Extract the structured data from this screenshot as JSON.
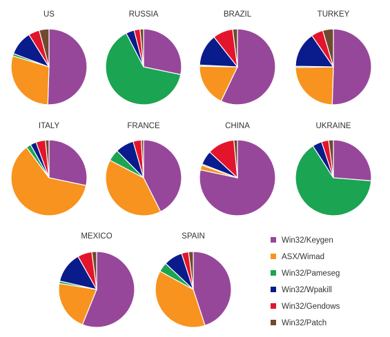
{
  "chart_data": {
    "type": "pie",
    "series_names": [
      "Win32/Keygen",
      "ASX/Wimad",
      "Win32/Pameseg",
      "Win32/Wpakill",
      "Win32/Gendows",
      "Win32/Patch"
    ],
    "colors": [
      "#97479A",
      "#F7931E",
      "#1BA452",
      "#0A1B8C",
      "#E3152C",
      "#6E4B2E"
    ],
    "pies": [
      {
        "title": "US",
        "values": [
          48.5,
          28.0,
          1.0,
          10.0,
          4.5,
          4.0
        ]
      },
      {
        "title": "RUSSIA",
        "values": [
          28.0,
          0.0,
          63.5,
          3.5,
          2.5,
          1.5
        ]
      },
      {
        "title": "BRAZIL",
        "values": [
          56.5,
          18.0,
          0.5,
          13.5,
          8.5,
          2.0
        ]
      },
      {
        "title": "TURKEY",
        "values": [
          50.0,
          24.0,
          0.5,
          15.0,
          5.0,
          4.5
        ]
      },
      {
        "title": "ITALY",
        "values": [
          28.0,
          61.0,
          2.0,
          2.5,
          4.0,
          1.5
        ]
      },
      {
        "title": "FRANCE",
        "values": [
          43.0,
          40.5,
          5.0,
          8.0,
          3.5,
          1.0
        ]
      },
      {
        "title": "CHINA",
        "values": [
          78.0,
          2.0,
          0.5,
          6.0,
          11.5,
          1.5
        ]
      },
      {
        "title": "UKRAINE",
        "values": [
          26.0,
          0.0,
          64.0,
          4.0,
          3.0,
          2.0
        ]
      },
      {
        "title": "MEXICO",
        "values": [
          55.0,
          21.0,
          1.0,
          13.0,
          6.0,
          2.0
        ]
      },
      {
        "title": "SPAIN",
        "values": [
          45.0,
          38.0,
          4.0,
          8.0,
          3.0,
          2.0
        ]
      }
    ]
  }
}
